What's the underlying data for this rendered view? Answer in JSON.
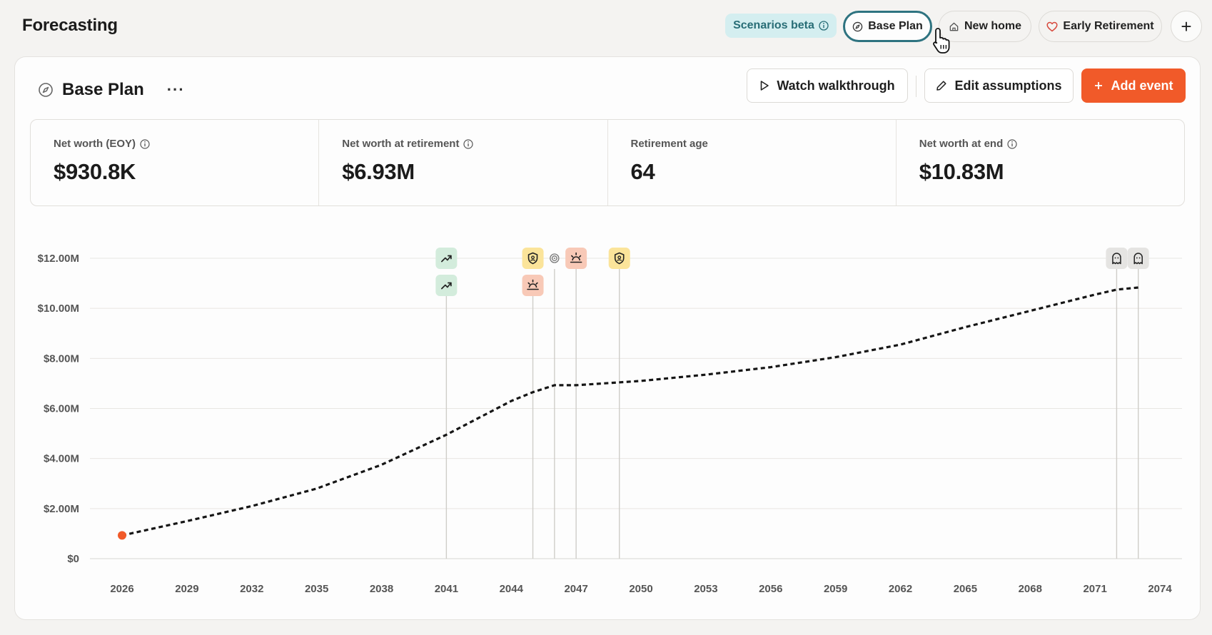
{
  "header": {
    "title": "Forecasting",
    "scenarios_badge": "Scenarios beta",
    "tabs": [
      {
        "label": "Base Plan",
        "icon": "compass-icon",
        "active": true
      },
      {
        "label": "New home",
        "icon": "home-icon",
        "active": false
      },
      {
        "label": "Early Retirement",
        "icon": "heart-icon",
        "active": false
      }
    ],
    "add_scenario": "+"
  },
  "plan": {
    "title": "Base Plan",
    "more": "···",
    "watch_walkthrough": "Watch walkthrough",
    "edit_assumptions": "Edit assumptions",
    "add_event": "Add event"
  },
  "stats": [
    {
      "label": "Net worth (EOY)",
      "value": "$930.8K",
      "info": true
    },
    {
      "label": "Net worth at retirement",
      "value": "$6.93M",
      "info": true
    },
    {
      "label": "Retirement age",
      "value": "64",
      "info": false
    },
    {
      "label": "Net worth at end",
      "value": "$10.83M",
      "info": true
    }
  ],
  "colors": {
    "accent": "#f15a29",
    "active_tab_border": "#2e7380",
    "badge_bg": "#d4eef0",
    "badge_text": "#286d76"
  },
  "chart_data": {
    "type": "line",
    "x_tick_labels": [
      "2026",
      "2029",
      "2032",
      "2035",
      "2038",
      "2041",
      "2044",
      "2047",
      "2050",
      "2053",
      "2056",
      "2059",
      "2062",
      "2065",
      "2068",
      "2071",
      "2074"
    ],
    "y_tick_labels": [
      "$0",
      "$2.00M",
      "$4.00M",
      "$6.00M",
      "$8.00M",
      "$10.00M",
      "$12.00M"
    ],
    "xlim": [
      2026,
      2074
    ],
    "ylim": [
      0,
      12
    ],
    "y_unit": "millions of dollars",
    "grid": true,
    "line_style": "dashed",
    "series": [
      {
        "x": [
          2026,
          2029,
          2032,
          2035,
          2038,
          2041,
          2044,
          2045,
          2046,
          2047,
          2050,
          2053,
          2056,
          2059,
          2062,
          2065,
          2068,
          2071,
          2072,
          2073
        ],
        "y": [
          0.93,
          1.5,
          2.1,
          2.8,
          3.75,
          4.95,
          6.3,
          6.65,
          6.93,
          6.93,
          7.1,
          7.35,
          7.65,
          8.05,
          8.55,
          9.25,
          9.9,
          10.55,
          10.75,
          10.83
        ]
      }
    ],
    "start_point": {
      "x": 2026,
      "y": 0.93
    },
    "events": [
      {
        "year": 2041,
        "icons": [
          "trending-up-icon",
          "trending-up-icon"
        ],
        "color": "#d3ecdc"
      },
      {
        "year": 2045,
        "icons": [
          "shield-icon",
          "sunrise-icon"
        ],
        "colors": [
          "#fbe49a",
          "#f8c9b7"
        ]
      },
      {
        "year": 2046,
        "icons": [
          "target-icon"
        ],
        "color": "none"
      },
      {
        "year": 2047,
        "icons": [
          "sunrise-icon"
        ],
        "color": "#f8c9b7"
      },
      {
        "year": 2049,
        "icons": [
          "shield-icon"
        ],
        "color": "#fbe49a"
      },
      {
        "year": 2072,
        "icons": [
          "ghost-icon"
        ],
        "color": "#e5e4e2"
      },
      {
        "year": 2073,
        "icons": [
          "ghost-icon"
        ],
        "color": "#e5e4e2"
      }
    ]
  }
}
